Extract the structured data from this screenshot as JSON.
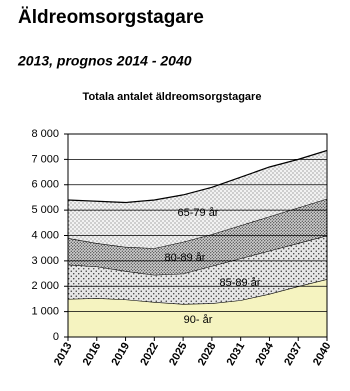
{
  "header": {
    "title": "Äldreomsorgstagare",
    "subtitle": "2013, prognos  2014 - 2040"
  },
  "chart_data": {
    "type": "stacked-area",
    "title": "Totala antalet äldreomsorgstagare",
    "x": [
      2013,
      2016,
      2019,
      2022,
      2025,
      2028,
      2031,
      2034,
      2037,
      2040
    ],
    "series": [
      {
        "name": "90- år",
        "color": "#f5f3c0",
        "values": [
          1500,
          1530,
          1480,
          1380,
          1300,
          1330,
          1450,
          1700,
          2000,
          2280
        ]
      },
      {
        "name": "85-89 år",
        "color": "#e6e6e6",
        "values": [
          1350,
          1250,
          1120,
          1070,
          1200,
          1470,
          1650,
          1700,
          1700,
          1720
        ]
      },
      {
        "name": "80-89 år",
        "color": "#cfcfcf",
        "values": [
          1050,
          920,
          950,
          1050,
          1250,
          1250,
          1300,
          1350,
          1400,
          1450
        ]
      },
      {
        "name": "65-79 år",
        "color": "#f2f2f2",
        "values": [
          1500,
          1650,
          1750,
          1900,
          1850,
          1850,
          1900,
          1950,
          1900,
          1900
        ]
      }
    ],
    "xlim": [
      2013,
      2040
    ],
    "xticks": [
      2013,
      2016,
      2019,
      2022,
      2025,
      2028,
      2031,
      2034,
      2037,
      2040
    ],
    "ylim": [
      0,
      8000
    ],
    "yticks": [
      0,
      {
        "value": 1000,
        "label": "1 000"
      },
      {
        "value": 2000,
        "label": "2 000"
      },
      {
        "value": 3000,
        "label": "3 000"
      },
      {
        "value": 4000,
        "label": "4 000"
      },
      {
        "value": 5000,
        "label": "5 000"
      },
      {
        "value": 6000,
        "label": "6 000"
      },
      {
        "value": 7000,
        "label": "7 000"
      },
      {
        "value": 8000,
        "label": "8 000"
      }
    ],
    "grid": true
  }
}
